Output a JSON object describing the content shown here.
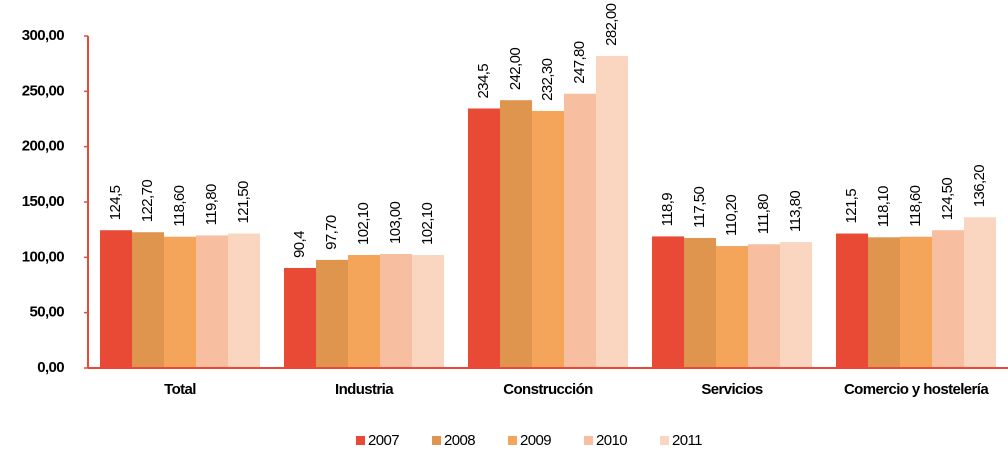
{
  "chart_data": {
    "type": "bar",
    "categories": [
      "Total",
      "Industria",
      "Construcción",
      "Servicios",
      "Comercio y hostelería"
    ],
    "series": [
      {
        "name": "2007",
        "color": "#e84a35",
        "values": [
          124.5,
          90.4,
          234.5,
          118.9,
          121.5
        ],
        "value_labels": [
          "124,5",
          "90,4",
          "234,5",
          "118,9",
          "121,5"
        ]
      },
      {
        "name": "2008",
        "color": "#e0954f",
        "values": [
          122.7,
          97.7,
          242,
          117.5,
          118.1
        ],
        "value_labels": [
          "122,70",
          "97,70",
          "242,00",
          "117,50",
          "118,10"
        ]
      },
      {
        "name": "2009",
        "color": "#f5a55a",
        "values": [
          118.6,
          102.1,
          232.3,
          110.2,
          118.6
        ],
        "value_labels": [
          "118,60",
          "102,10",
          "232,30",
          "110,20",
          "118,60"
        ]
      },
      {
        "name": "2010",
        "color": "#f8bea0",
        "values": [
          119.8,
          103,
          247.8,
          111.8,
          124.5
        ],
        "value_labels": [
          "119,80",
          "103,00",
          "247,80",
          "111,80",
          "124,50"
        ]
      },
      {
        "name": "2011",
        "color": "#fad5c0",
        "values": [
          121.5,
          102.1,
          282,
          113.8,
          136.2
        ],
        "value_labels": [
          "121,50",
          "102,10",
          "282,00",
          "113,80",
          "136,20"
        ]
      }
    ],
    "ylim": [
      0,
      300
    ],
    "yticks": [
      {
        "value": 0,
        "label": "0,00"
      },
      {
        "value": 50,
        "label": "50,00"
      },
      {
        "value": 100,
        "label": "100,00"
      },
      {
        "value": 150,
        "label": "150,00"
      },
      {
        "value": 200,
        "label": "200,00"
      },
      {
        "value": 250,
        "label": "250,00"
      },
      {
        "value": 300,
        "label": "300,00"
      }
    ],
    "legend": "bottom"
  }
}
